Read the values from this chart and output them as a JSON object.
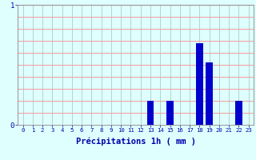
{
  "hours": [
    0,
    1,
    2,
    3,
    4,
    5,
    6,
    7,
    8,
    9,
    10,
    11,
    12,
    13,
    14,
    15,
    16,
    17,
    18,
    19,
    20,
    21,
    22,
    23
  ],
  "values": [
    0,
    0,
    0,
    0,
    0,
    0,
    0,
    0,
    0,
    0,
    0,
    0,
    0,
    0.2,
    0,
    0.2,
    0,
    0,
    0.68,
    0.52,
    0,
    0,
    0.2,
    0
  ],
  "bar_color": "#0000CC",
  "bg_color": "#DFFFFF",
  "grid_h_color": "#FF8888",
  "grid_v_color": "#AABBBB",
  "xlabel": "Précipitations 1h ( mm )",
  "xlabel_color": "#0000AA",
  "tick_color": "#0000AA",
  "ylim": [
    0,
    1
  ],
  "xlim": [
    -0.5,
    23.5
  ],
  "yticks": [
    0,
    1
  ],
  "label_fontsize": 7.5
}
